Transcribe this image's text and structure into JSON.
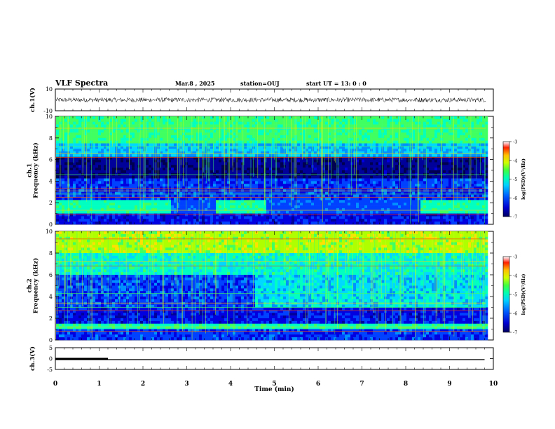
{
  "header": {
    "title": "VLF Spectra",
    "date": "Mar.8 , 2025",
    "station": "station=OUJ",
    "start": "start UT = 13: 0 : 0"
  },
  "colors": {
    "palette": [
      "#000060",
      "#0000d0",
      "#0050ff",
      "#00b8ff",
      "#00ffd8",
      "#40ff60",
      "#c8ff00",
      "#ffd000",
      "#ff4000",
      "#c00000",
      "#ffffff"
    ]
  },
  "chart_data": [
    {
      "type": "line",
      "name": "ch1-waveform",
      "ylabel": "ch.1(V)",
      "ylim": [
        -10,
        10
      ],
      "yticks": [
        "10",
        "-10"
      ],
      "series": [
        {
          "values": [
            0,
            0,
            0,
            0,
            0,
            0,
            0,
            0,
            0,
            0
          ]
        }
      ],
      "x": [
        0,
        1,
        2,
        3,
        4,
        5,
        6,
        7,
        8,
        9
      ]
    },
    {
      "type": "heatmap",
      "name": "ch1-spectrogram",
      "ylabel": "ch.1\nFrequency (kHz)",
      "ylim": [
        0,
        10
      ],
      "yticks": [
        "0",
        "2",
        "4",
        "6",
        "8",
        "10"
      ],
      "colorbar": {
        "label": "log(PSD)(V²/Hz)",
        "range": [
          -7,
          -3
        ],
        "ticks": [
          "-3",
          "-4",
          "-5",
          "-6",
          "-7"
        ]
      }
    },
    {
      "type": "heatmap",
      "name": "ch2-spectrogram",
      "ylabel": "ch.2\nFrequency (kHz)",
      "ylim": [
        0,
        10
      ],
      "yticks": [
        "0",
        "2",
        "4",
        "6",
        "8",
        "10"
      ],
      "colorbar": {
        "label": "log(PSD)(V²/Hz)",
        "range": [
          -7,
          -3
        ],
        "ticks": [
          "-3",
          "-4",
          "-5",
          "-6",
          "-7"
        ]
      }
    },
    {
      "type": "line",
      "name": "ch3-signal",
      "ylabel": "ch.3(V)",
      "ylim": [
        -5,
        5
      ],
      "yticks": [
        "5",
        "0",
        "-5"
      ],
      "series": [
        {
          "name": "level",
          "values": [
            -0.5,
            -0.5,
            -0.5,
            -0.5,
            -0.5,
            -0.5,
            -0.5,
            -0.5,
            -0.5,
            -0.5,
            -0.5
          ]
        },
        {
          "name": "pulse",
          "x": [
            0,
            1.2
          ],
          "values": [
            -0.5,
            -0.5
          ]
        }
      ],
      "x": [
        0,
        1,
        2,
        3,
        4,
        5,
        6,
        7,
        8,
        9,
        9.8
      ]
    }
  ],
  "xaxis": {
    "label": "Time (min)",
    "ticks": [
      "0",
      "1",
      "2",
      "3",
      "4",
      "5",
      "6",
      "7",
      "8",
      "9",
      "10"
    ],
    "xlim": [
      0,
      10
    ]
  }
}
